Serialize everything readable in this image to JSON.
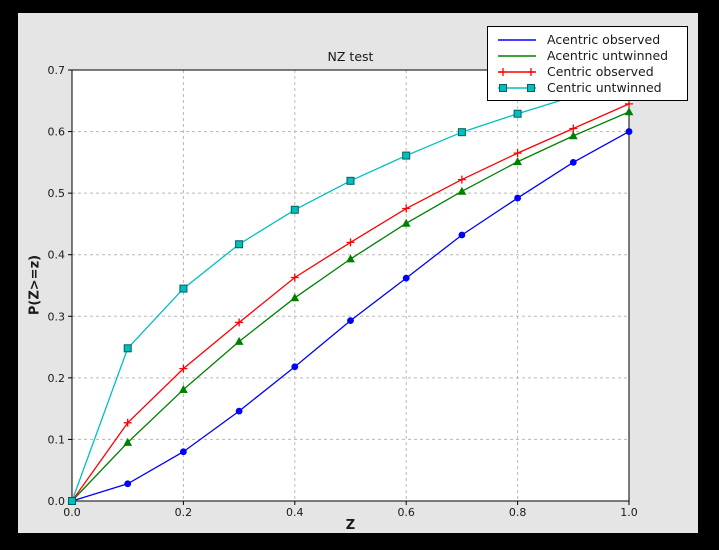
{
  "window": {
    "outer_bg": "#000000",
    "figure_bg": "#e5e5e5",
    "plot_bg": "#ffffff",
    "grid_color": "#b8b8b8",
    "frame_color": "#000000",
    "text_color": "#1a1a1a"
  },
  "chart_data": {
    "type": "line",
    "title": "NZ test",
    "xlabel": "Z",
    "ylabel": "P(Z>=z)",
    "xlim": [
      0.0,
      1.0
    ],
    "ylim": [
      0.0,
      0.7
    ],
    "xticks": {
      "values": [
        0.0,
        0.2,
        0.4,
        0.6,
        0.8,
        1.0
      ],
      "labels": [
        "0.0",
        "0.2",
        "0.4",
        "0.6",
        "0.8",
        "1.0"
      ]
    },
    "yticks": {
      "values": [
        0.0,
        0.1,
        0.2,
        0.3,
        0.4,
        0.5,
        0.6,
        0.7
      ],
      "labels": [
        "0.0",
        "0.1",
        "0.2",
        "0.3",
        "0.4",
        "0.5",
        "0.6",
        "0.7"
      ]
    },
    "grid": true,
    "grid_style": "dashed",
    "legend_position": "upper-right",
    "x": [
      0.0,
      0.1,
      0.2,
      0.3,
      0.4,
      0.5,
      0.6,
      0.7,
      0.8,
      0.9,
      1.0
    ],
    "series": [
      {
        "name": "Acentric observed",
        "color": "#0000ff",
        "marker": "circle",
        "legend_marker": "none",
        "values": [
          0.0,
          0.028,
          0.08,
          0.146,
          0.218,
          0.293,
          0.362,
          0.432,
          0.492,
          0.55,
          0.6
        ]
      },
      {
        "name": "Acentric untwinned",
        "color": "#008000",
        "marker": "triangle",
        "legend_marker": "none",
        "values": [
          0.0,
          0.095,
          0.181,
          0.259,
          0.33,
          0.393,
          0.451,
          0.503,
          0.551,
          0.593,
          0.632
        ]
      },
      {
        "name": "Centric observed",
        "color": "#ff0000",
        "marker": "plus",
        "legend_marker": "plus",
        "values": [
          0.0,
          0.127,
          0.215,
          0.29,
          0.363,
          0.42,
          0.475,
          0.522,
          0.565,
          0.605,
          0.645
        ]
      },
      {
        "name": "Centric untwinned",
        "color": "#00bfbf",
        "marker": "square",
        "legend_marker": "square",
        "marker_edge": "#005f5f",
        "values": [
          0.0,
          0.248,
          0.345,
          0.417,
          0.473,
          0.52,
          0.561,
          0.599,
          0.629,
          0.657,
          0.683
        ]
      }
    ]
  }
}
